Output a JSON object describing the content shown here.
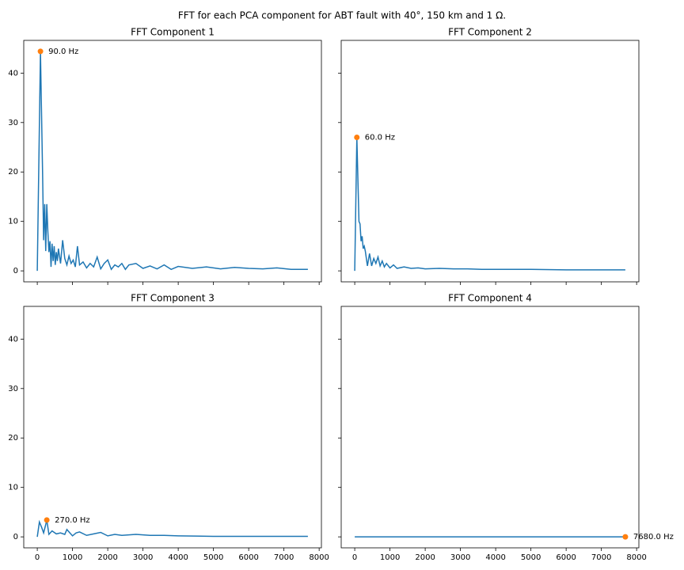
{
  "title": "FFT for each PCA component for ABT fault with 40°, 150 km and 1 Ω.",
  "chart_data": [
    {
      "type": "line",
      "title": "FFT Component 1",
      "color": "#1f77b4",
      "x": [
        0,
        90,
        150,
        180,
        210,
        240,
        270,
        300,
        330,
        360,
        390,
        420,
        450,
        480,
        510,
        540,
        570,
        600,
        660,
        720,
        780,
        840,
        900,
        960,
        1020,
        1080,
        1140,
        1200,
        1300,
        1400,
        1500,
        1600,
        1700,
        1800,
        1900,
        2000,
        2100,
        2200,
        2300,
        2400,
        2500,
        2600,
        2800,
        3000,
        3200,
        3400,
        3600,
        3800,
        4000,
        4400,
        4800,
        5200,
        5600,
        6000,
        6400,
        6800,
        7200,
        7680
      ],
      "values": [
        0,
        44.4,
        20,
        6.2,
        13.5,
        4,
        13.5,
        8,
        3.8,
        6,
        0.8,
        5.5,
        2,
        5,
        1.2,
        3.8,
        2,
        4.5,
        1.5,
        6.2,
        2.5,
        1.2,
        3,
        1.5,
        2.2,
        0.8,
        5,
        1.2,
        1.8,
        0.6,
        1.5,
        0.8,
        2.8,
        0.4,
        1.5,
        2.2,
        0.3,
        1.2,
        0.8,
        1.5,
        0.3,
        1.2,
        1.5,
        0.5,
        1,
        0.4,
        1.2,
        0.3,
        0.9,
        0.5,
        0.8,
        0.4,
        0.7,
        0.5,
        0.4,
        0.6,
        0.3,
        0.3
      ],
      "annotations": [
        {
          "x": 90,
          "y": 44.4,
          "text": "90.0 Hz",
          "color": "#ff7f0e"
        }
      ],
      "xlim": [
        -384,
        8064
      ],
      "ylim": [
        -2.22,
        46.62
      ],
      "xticks": [
        0,
        1000,
        2000,
        3000,
        4000,
        5000,
        6000,
        7000,
        8000
      ],
      "yticks": [
        0,
        10,
        20,
        30,
        40
      ],
      "xticklabels_visible": false,
      "yticklabels_visible": true
    },
    {
      "type": "line",
      "title": "FFT Component 2",
      "color": "#1f77b4",
      "x": [
        0,
        60,
        120,
        150,
        180,
        210,
        240,
        270,
        300,
        360,
        420,
        480,
        540,
        600,
        660,
        720,
        780,
        840,
        900,
        1000,
        1100,
        1200,
        1400,
        1600,
        1800,
        2000,
        2400,
        2800,
        3200,
        3600,
        4000,
        5000,
        6000,
        7000,
        7680
      ],
      "values": [
        0,
        27,
        10,
        9.5,
        6,
        7,
        4.5,
        5,
        4,
        1,
        3.5,
        1,
        2.5,
        1.5,
        2.8,
        1,
        2,
        0.8,
        1.5,
        0.6,
        1.2,
        0.5,
        0.8,
        0.5,
        0.6,
        0.4,
        0.5,
        0.4,
        0.4,
        0.3,
        0.3,
        0.3,
        0.2,
        0.2,
        0.2
      ],
      "annotations": [
        {
          "x": 60,
          "y": 27,
          "text": "60.0 Hz",
          "color": "#ff7f0e"
        }
      ],
      "xlim": [
        -384,
        8064
      ],
      "ylim": [
        -2.22,
        46.62
      ],
      "xticks": [
        0,
        1000,
        2000,
        3000,
        4000,
        5000,
        6000,
        7000,
        8000
      ],
      "yticks": [
        0,
        10,
        20,
        30,
        40
      ],
      "xticklabels_visible": false,
      "yticklabels_visible": false
    },
    {
      "type": "line",
      "title": "FFT Component 3",
      "color": "#1f77b4",
      "x": [
        0,
        60,
        120,
        180,
        240,
        270,
        330,
        420,
        540,
        660,
        780,
        840,
        900,
        1000,
        1100,
        1200,
        1400,
        1600,
        1800,
        2000,
        2200,
        2400,
        2800,
        3200,
        3600,
        4000,
        5000,
        6000,
        7000,
        7680
      ],
      "values": [
        0,
        3,
        2,
        0.8,
        2.5,
        3.4,
        0.5,
        1.2,
        0.6,
        0.8,
        0.5,
        1.5,
        1,
        0.2,
        0.8,
        1,
        0.3,
        0.6,
        0.9,
        0.2,
        0.5,
        0.3,
        0.5,
        0.3,
        0.3,
        0.2,
        0.1,
        0.1,
        0.1,
        0.1
      ],
      "annotations": [
        {
          "x": 270,
          "y": 3.4,
          "text": "270.0 Hz",
          "color": "#ff7f0e"
        }
      ],
      "xlim": [
        -384,
        8064
      ],
      "ylim": [
        -2.22,
        46.62
      ],
      "xticks": [
        0,
        1000,
        2000,
        3000,
        4000,
        5000,
        6000,
        7000,
        8000
      ],
      "yticks": [
        0,
        10,
        20,
        30,
        40
      ],
      "xticklabels_visible": true,
      "yticklabels_visible": true
    },
    {
      "type": "line",
      "title": "FFT Component 4",
      "color": "#1f77b4",
      "x": [
        0,
        7680
      ],
      "values": [
        0,
        0
      ],
      "annotations": [
        {
          "x": 7680,
          "y": 0,
          "text": "7680.0 Hz",
          "color": "#ff7f0e"
        }
      ],
      "xlim": [
        -384,
        8064
      ],
      "ylim": [
        -2.22,
        46.62
      ],
      "xticks": [
        0,
        1000,
        2000,
        3000,
        4000,
        5000,
        6000,
        7000,
        8000
      ],
      "yticks": [
        0,
        10,
        20,
        30,
        40
      ],
      "xticklabels_visible": true,
      "yticklabels_visible": false
    }
  ]
}
